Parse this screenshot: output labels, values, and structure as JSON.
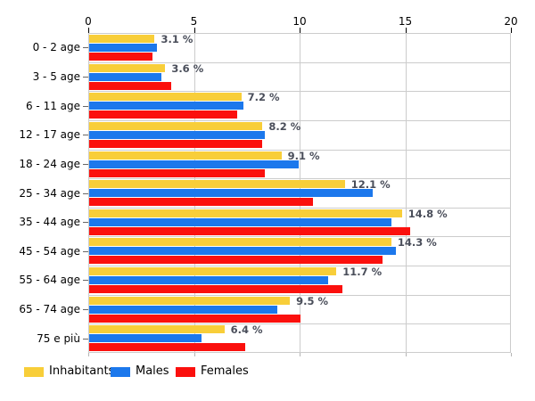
{
  "chart_data": {
    "type": "bar",
    "orientation": "horizontal",
    "title": "",
    "xlabel": "",
    "ylabel": "",
    "categories": [
      "0 - 2 age",
      "3 - 5 age",
      "6 - 11 age",
      "12 - 17 age",
      "18 - 24 age",
      "25 - 34 age",
      "35 - 44 age",
      "45 - 54 age",
      "55 - 64 age",
      "65 - 74 age",
      "75 e più"
    ],
    "series": [
      {
        "name": "Inhabitants",
        "color": "#F8CE39",
        "values": [
          3.1,
          3.6,
          7.2,
          8.2,
          9.1,
          12.1,
          14.8,
          14.3,
          11.7,
          9.5,
          6.4
        ]
      },
      {
        "name": "Males",
        "color": "#1C78EC",
        "values": [
          3.2,
          3.4,
          7.3,
          8.3,
          9.9,
          13.4,
          14.3,
          14.5,
          11.3,
          8.9,
          5.3
        ]
      },
      {
        "name": "Females",
        "color": "#FB100D",
        "values": [
          3.0,
          3.9,
          7.0,
          8.2,
          8.3,
          10.6,
          15.2,
          13.9,
          12.0,
          10.0,
          7.4
        ]
      }
    ],
    "value_labels": [
      "3.1 %",
      "3.6 %",
      "7.2 %",
      "8.2 %",
      "9.1 %",
      "12.1 %",
      "14.8 %",
      "14.3 %",
      "11.7 %",
      "9.5 %",
      "6.4 %"
    ],
    "value_labels_series": "Inhabitants",
    "x_ticks": [
      "0",
      "5",
      "10",
      "15",
      "20"
    ],
    "xlim": [
      0,
      20
    ],
    "grid": true,
    "legend_position": "bottom",
    "legend": [
      "Inhabitants",
      "Males",
      "Females"
    ],
    "colors": {
      "grid": "#cccccc",
      "axis_text": "#000000",
      "value_label_text": "#4a4e5a",
      "background": "#ffffff"
    }
  }
}
